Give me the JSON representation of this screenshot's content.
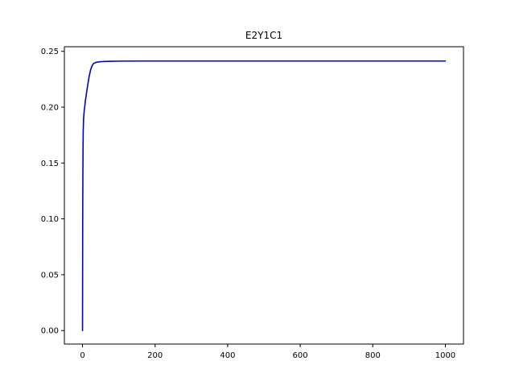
{
  "chart_data": {
    "type": "line",
    "title": "E2Y1C1",
    "xlabel": "",
    "ylabel": "",
    "xlim": [
      -50,
      1050
    ],
    "ylim": [
      -0.0121,
      0.2541
    ],
    "x_ticks": [
      0,
      200,
      400,
      600,
      800,
      1000
    ],
    "x_tick_labels": [
      "0",
      "200",
      "400",
      "600",
      "800",
      "1000"
    ],
    "y_ticks": [
      0.0,
      0.05,
      0.1,
      0.15,
      0.2,
      0.25
    ],
    "y_tick_labels": [
      "0.00",
      "0.05",
      "0.10",
      "0.15",
      "0.20",
      "0.25"
    ],
    "grid": false,
    "series": [
      {
        "color": "#0000cc",
        "x": [
          0,
          0.5,
          1,
          1.5,
          2,
          3,
          4,
          5,
          6,
          7,
          8,
          9,
          10,
          12,
          14,
          16,
          18,
          20,
          22,
          25,
          28,
          31,
          35,
          40,
          45,
          50,
          60,
          70,
          80,
          100,
          150,
          200,
          300,
          400,
          500,
          600,
          700,
          800,
          900,
          1000
        ],
        "y": [
          0.0,
          0.095,
          0.14,
          0.165,
          0.18,
          0.19,
          0.194,
          0.198,
          0.2,
          0.203,
          0.206,
          0.208,
          0.21,
          0.215,
          0.219,
          0.223,
          0.227,
          0.23,
          0.233,
          0.236,
          0.238,
          0.2392,
          0.2398,
          0.2403,
          0.2405,
          0.2407,
          0.2409,
          0.241,
          0.2411,
          0.2412,
          0.2413,
          0.2413,
          0.2413,
          0.2413,
          0.2413,
          0.2413,
          0.2413,
          0.2413,
          0.2413,
          0.2413
        ]
      }
    ]
  }
}
